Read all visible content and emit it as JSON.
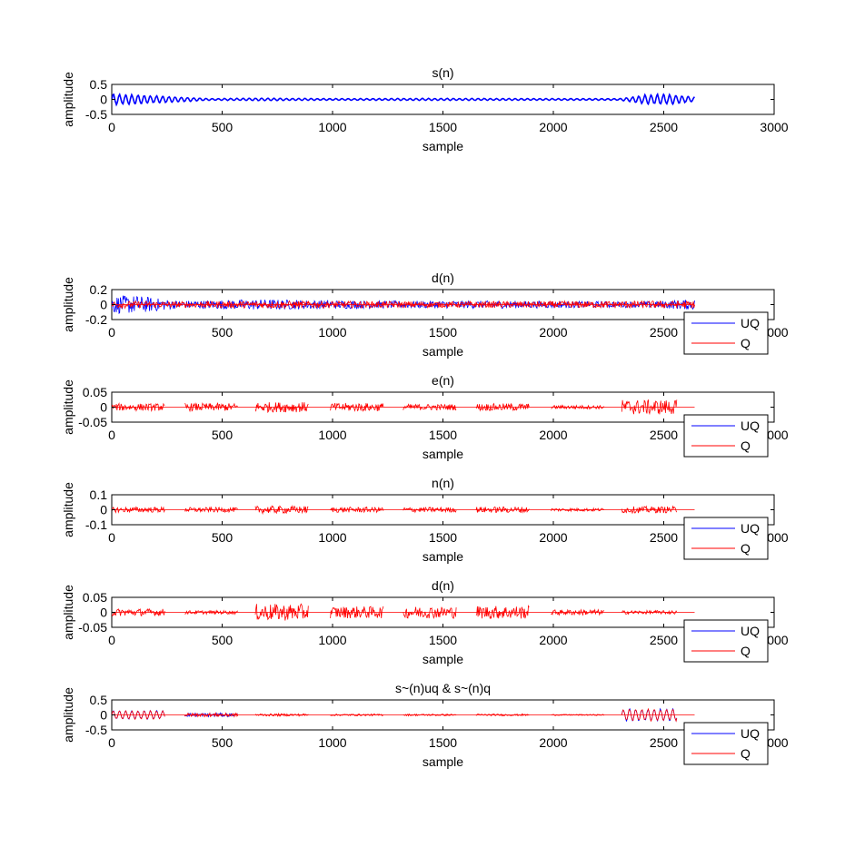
{
  "colors": {
    "uq": "#0000ff",
    "q": "#ff0000",
    "axes": "#000000",
    "background": "#ffffff"
  },
  "chart_data": [
    {
      "type": "line",
      "title": "s(n)",
      "xlabel": "sample",
      "ylabel": "amplitude",
      "xlim": [
        0,
        3000
      ],
      "ylim": [
        -0.5,
        0.5
      ],
      "xticks": [
        "0",
        "500",
        "1000",
        "1500",
        "2000",
        "2500",
        "3000"
      ],
      "yticks": [
        "0.5",
        "0",
        "-0.5"
      ],
      "legend": null,
      "series": [
        {
          "color": "#0000ff",
          "segments": [
            {
              "x_start": 0,
              "x_end": 2640,
              "envelope_points": [
                [
                  0,
                  0.25
                ],
                [
                  120,
                  0.22
                ],
                [
                  300,
                  0.12
                ],
                [
                  450,
                  0.04
                ],
                [
                  650,
                  0.06
                ],
                [
                  1000,
                  0.04
                ],
                [
                  1500,
                  0.05
                ],
                [
                  2000,
                  0.04
                ],
                [
                  2300,
                  0.04
                ],
                [
                  2420,
                  0.22
                ],
                [
                  2500,
                  0.25
                ],
                [
                  2640,
                  0.12
                ]
              ]
            }
          ]
        }
      ]
    },
    {
      "type": "line",
      "title": "d(n)",
      "xlabel": "sample",
      "ylabel": "amplitude",
      "xlim": [
        0,
        3000
      ],
      "ylim": [
        -0.2,
        0.2
      ],
      "xticks": [
        "0",
        "500",
        "1000",
        "1500",
        "2000",
        "2500",
        "3000"
      ],
      "yticks": [
        "0.2",
        "0",
        "-0.2"
      ],
      "legend": "bottom-right",
      "series": [
        {
          "name": "UQ",
          "color": "#0000ff",
          "segments": [
            {
              "x_start": 0,
              "x_end": 2640,
              "envelope_points": [
                [
                  0,
                  0.12
                ],
                [
                  120,
                  0.12
                ],
                [
                  300,
                  0.05
                ],
                [
                  650,
                  0.07
                ],
                [
                  1200,
                  0.05
                ],
                [
                  1800,
                  0.05
                ],
                [
                  2400,
                  0.04
                ],
                [
                  2640,
                  0.07
                ]
              ]
            }
          ]
        },
        {
          "name": "Q",
          "color": "#ff0000",
          "segments": [
            {
              "x_start": 0,
              "x_end": 2640,
              "envelope_points": [
                [
                  0,
                  0.05
                ],
                [
                  300,
                  0.04
                ],
                [
                  800,
                  0.05
                ],
                [
                  1500,
                  0.04
                ],
                [
                  2400,
                  0.05
                ],
                [
                  2640,
                  0.05
                ]
              ]
            }
          ]
        }
      ]
    },
    {
      "type": "line",
      "title": "e(n)",
      "xlabel": "sample",
      "ylabel": "amplitude",
      "xlim": [
        0,
        3000
      ],
      "ylim": [
        -0.05,
        0.05
      ],
      "xticks": [
        "0",
        "500",
        "1000",
        "1500",
        "2000",
        "2500",
        "3000"
      ],
      "yticks": [
        "0.05",
        "0",
        "-0.05"
      ],
      "legend": "bottom-right",
      "series": [
        {
          "name": "UQ",
          "color": "#0000ff",
          "segments": []
        },
        {
          "name": "Q",
          "color": "#ff0000",
          "segments": [
            {
              "x_start": 0,
              "x_end": 240,
              "amp": 0.012
            },
            {
              "x_start": 330,
              "x_end": 570,
              "amp": 0.013
            },
            {
              "x_start": 650,
              "x_end": 890,
              "amp": 0.017
            },
            {
              "x_start": 990,
              "x_end": 1230,
              "amp": 0.014
            },
            {
              "x_start": 1320,
              "x_end": 1560,
              "amp": 0.01
            },
            {
              "x_start": 1650,
              "x_end": 1890,
              "amp": 0.012
            },
            {
              "x_start": 1990,
              "x_end": 2230,
              "amp": 0.006
            },
            {
              "x_start": 2310,
              "x_end": 2560,
              "amp": 0.025
            }
          ]
        }
      ]
    },
    {
      "type": "line",
      "title": "n(n)",
      "xlabel": "sample",
      "ylabel": "amplitude",
      "xlim": [
        0,
        3000
      ],
      "ylim": [
        -0.1,
        0.1
      ],
      "xticks": [
        "0",
        "500",
        "1000",
        "1500",
        "2000",
        "2500",
        "3000"
      ],
      "yticks": [
        "0.1",
        "0",
        "-0.1"
      ],
      "legend": "bottom-right",
      "series": [
        {
          "name": "UQ",
          "color": "#0000ff",
          "segments": []
        },
        {
          "name": "Q",
          "color": "#ff0000",
          "segments": [
            {
              "x_start": 0,
              "x_end": 240,
              "amp": 0.018
            },
            {
              "x_start": 330,
              "x_end": 570,
              "amp": 0.016
            },
            {
              "x_start": 650,
              "x_end": 890,
              "amp": 0.025
            },
            {
              "x_start": 990,
              "x_end": 1230,
              "amp": 0.018
            },
            {
              "x_start": 1320,
              "x_end": 1560,
              "amp": 0.017
            },
            {
              "x_start": 1650,
              "x_end": 1890,
              "amp": 0.02
            },
            {
              "x_start": 1990,
              "x_end": 2230,
              "amp": 0.01
            },
            {
              "x_start": 2310,
              "x_end": 2560,
              "amp": 0.022
            }
          ]
        }
      ]
    },
    {
      "type": "line",
      "title": "d(n)",
      "xlabel": "sample",
      "ylabel": "amplitude",
      "xlim": [
        0,
        3000
      ],
      "ylim": [
        -0.05,
        0.05
      ],
      "xticks": [
        "0",
        "500",
        "1000",
        "1500",
        "2000",
        "2500",
        "3000"
      ],
      "yticks": [
        "0.05",
        "0",
        "-0.05"
      ],
      "legend": "bottom-right",
      "series": [
        {
          "name": "UQ",
          "color": "#0000ff",
          "segments": []
        },
        {
          "name": "Q",
          "color": "#ff0000",
          "segments": [
            {
              "x_start": 0,
              "x_end": 240,
              "amp": 0.012
            },
            {
              "x_start": 330,
              "x_end": 570,
              "amp": 0.006
            },
            {
              "x_start": 650,
              "x_end": 890,
              "amp": 0.028
            },
            {
              "x_start": 990,
              "x_end": 1230,
              "amp": 0.02
            },
            {
              "x_start": 1320,
              "x_end": 1560,
              "amp": 0.02
            },
            {
              "x_start": 1650,
              "x_end": 1890,
              "amp": 0.022
            },
            {
              "x_start": 1990,
              "x_end": 2230,
              "amp": 0.009
            },
            {
              "x_start": 2310,
              "x_end": 2560,
              "amp": 0.006
            }
          ]
        }
      ]
    },
    {
      "type": "line",
      "title": "s~(n)uq & s~(n)q",
      "xlabel": "sample",
      "ylabel": "amplitude",
      "xlim": [
        0,
        3000
      ],
      "ylim": [
        -0.5,
        0.5
      ],
      "xticks": [
        "0",
        "500",
        "1000",
        "1500",
        "2000",
        "2500",
        "3000"
      ],
      "yticks": [
        "0.5",
        "0",
        "-0.5"
      ],
      "legend": "bottom-right",
      "series": [
        {
          "name": "UQ",
          "color": "#0000ff",
          "segments": [
            {
              "x_start": 0,
              "x_end": 240,
              "amp": 0.2
            },
            {
              "x_start": 330,
              "x_end": 570,
              "amp": 0.06
            },
            {
              "x_start": 2310,
              "x_end": 2560,
              "amp": 0.28
            }
          ]
        },
        {
          "name": "Q",
          "color": "#ff0000",
          "segments": [
            {
              "x_start": 0,
              "x_end": 240,
              "amp": 0.2
            },
            {
              "x_start": 330,
              "x_end": 570,
              "amp": 0.06
            },
            {
              "x_start": 650,
              "x_end": 890,
              "amp": 0.04
            },
            {
              "x_start": 990,
              "x_end": 1230,
              "amp": 0.03
            },
            {
              "x_start": 1320,
              "x_end": 1560,
              "amp": 0.03
            },
            {
              "x_start": 1650,
              "x_end": 1890,
              "amp": 0.03
            },
            {
              "x_start": 1990,
              "x_end": 2230,
              "amp": 0.02
            },
            {
              "x_start": 2310,
              "x_end": 2560,
              "amp": 0.28
            }
          ]
        }
      ]
    }
  ]
}
